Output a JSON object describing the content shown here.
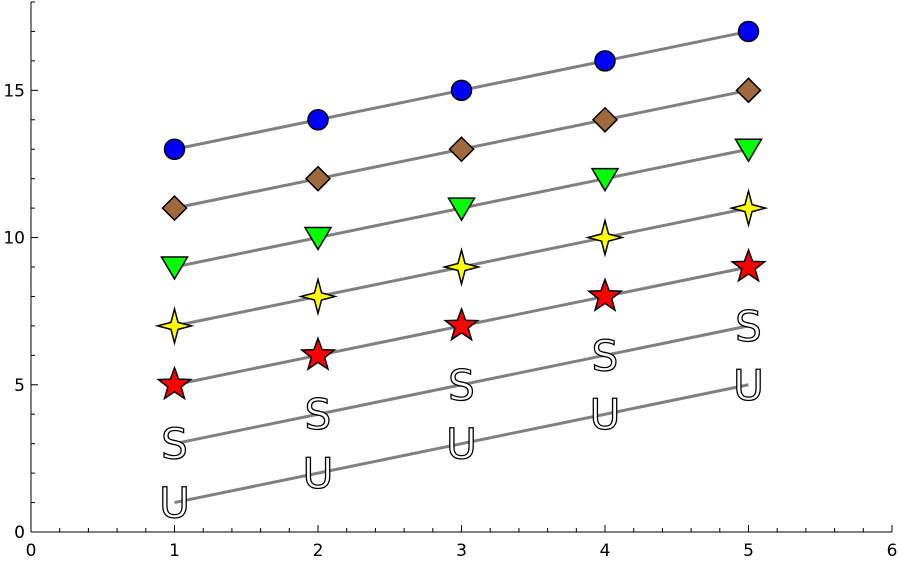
{
  "chart_data": {
    "type": "line",
    "title": "",
    "xlabel": "",
    "ylabel": "",
    "xlim": [
      0,
      6
    ],
    "ylim": [
      0,
      18
    ],
    "x_ticks": [
      0,
      1,
      2,
      3,
      4,
      5,
      6
    ],
    "y_ticks": [
      0,
      5,
      10,
      15
    ],
    "grid": false,
    "line_color": "#808080",
    "x": [
      1,
      2,
      3,
      4,
      5
    ],
    "series": [
      {
        "marker": "circle",
        "color": "#0000ff",
        "values": [
          13,
          14,
          15,
          16,
          17
        ]
      },
      {
        "marker": "diamond",
        "color": "#a0693c",
        "values": [
          11,
          12,
          13,
          14,
          15
        ]
      },
      {
        "marker": "triangle-down",
        "color": "#00ff00",
        "values": [
          9,
          10,
          11,
          12,
          13
        ]
      },
      {
        "marker": "four-point-star",
        "color": "#ffff00",
        "values": [
          7,
          8,
          9,
          10,
          11
        ]
      },
      {
        "marker": "star",
        "color": "#ff0000",
        "values": [
          5,
          6,
          7,
          8,
          9
        ]
      },
      {
        "marker": "letter",
        "letter": "S",
        "color": "#ffffff",
        "values": [
          3,
          4,
          5,
          6,
          7
        ]
      },
      {
        "marker": "letter",
        "letter": "U",
        "color": "#ffffff",
        "values": [
          1,
          2,
          3,
          4,
          5
        ]
      }
    ]
  }
}
